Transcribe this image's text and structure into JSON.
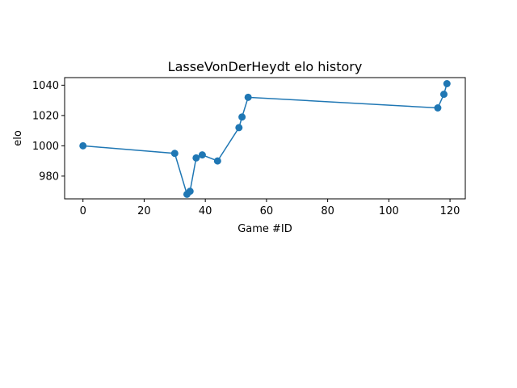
{
  "chart_data": {
    "type": "line",
    "title": "LasseVonDerHeydt elo history",
    "xlabel": "Game #ID",
    "ylabel": "elo",
    "xlim": [
      -6,
      125
    ],
    "ylim": [
      965,
      1045
    ],
    "xticks": [
      0,
      20,
      40,
      60,
      80,
      100,
      120
    ],
    "yticks": [
      980,
      1000,
      1020,
      1040
    ],
    "grid": false,
    "color": "#1f77b4",
    "marker": "circle",
    "series": [
      {
        "x": [
          0,
          30,
          34,
          35,
          37,
          39,
          44,
          51,
          52,
          54,
          116,
          118,
          119
        ],
        "y": [
          1000,
          995,
          968,
          970,
          992,
          994,
          990,
          1012,
          1019,
          1032,
          1025,
          1034,
          1041
        ]
      }
    ]
  }
}
